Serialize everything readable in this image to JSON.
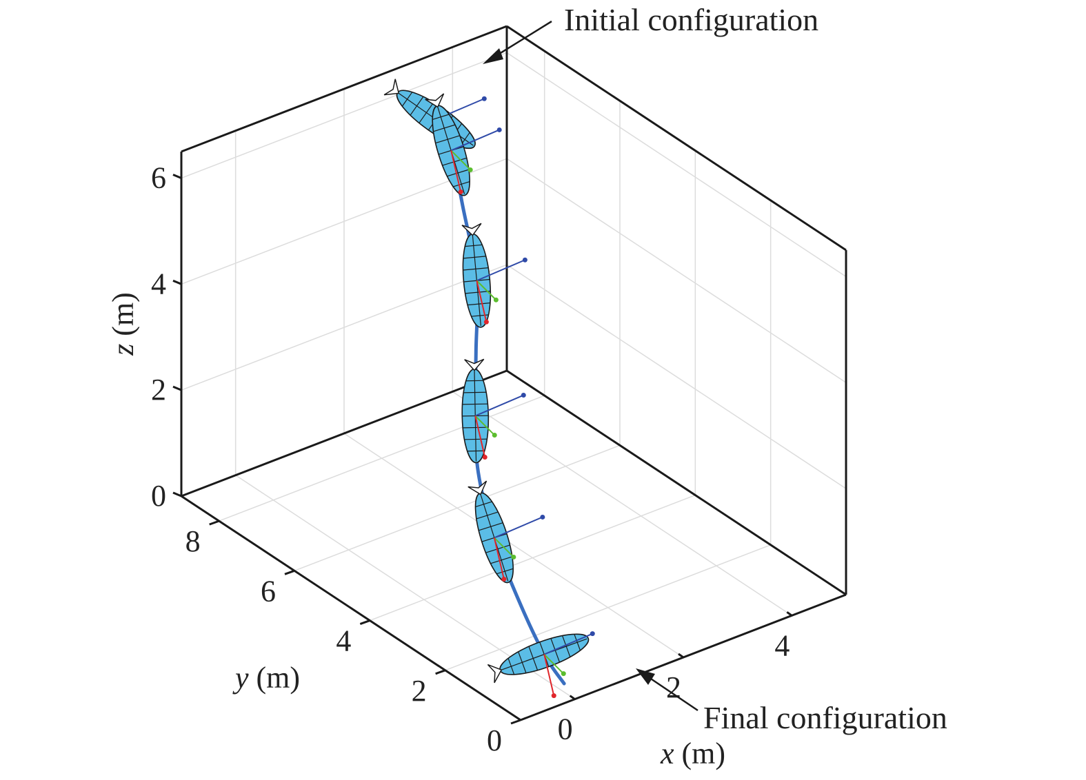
{
  "chart_data": {
    "type": "line",
    "projection": "3d",
    "xlabel": {
      "var": "x",
      "unit": " (m)"
    },
    "ylabel": {
      "var": "y",
      "unit": " (m)"
    },
    "zlabel": {
      "var": "z",
      "unit": " (m)"
    },
    "xlim": [
      -1,
      5
    ],
    "ylim": [
      0,
      9
    ],
    "zlim": [
      0,
      6.5
    ],
    "xticks": [
      0,
      2,
      4
    ],
    "yticks": [
      0,
      2,
      4,
      6,
      8
    ],
    "zticks": [
      0,
      2,
      4,
      6
    ],
    "grid": true,
    "trajectory_color": "#3a6fc0",
    "body_color": "#5bbde6",
    "axis_colors": {
      "x": "#e0262b",
      "y": "#5cbd2f",
      "z": "#2f4aa8"
    },
    "annotations": {
      "start": "Initial configuration",
      "end": "Final configuration"
    },
    "series": [
      {
        "x": [
          3.0,
          3.0,
          2.8,
          2.5,
          2.0,
          1.5,
          1.0,
          0.6,
          0.35,
          0.2,
          0.15
        ],
        "y": [
          8.0,
          7.6,
          7.0,
          6.2,
          5.5,
          4.8,
          4.0,
          3.0,
          2.0,
          1.1,
          0.5
        ],
        "z": [
          6.0,
          5.6,
          4.9,
          4.0,
          3.2,
          2.5,
          2.0,
          1.4,
          0.8,
          0.25,
          0.0
        ]
      }
    ],
    "configurations": [
      {
        "x": 3.0,
        "y": 8.0,
        "z": 6.0
      },
      {
        "x": 3.0,
        "y": 7.6,
        "z": 5.6
      },
      {
        "x": 2.5,
        "y": 6.2,
        "z": 4.0
      },
      {
        "x": 1.5,
        "y": 4.8,
        "z": 2.5
      },
      {
        "x": 0.6,
        "y": 3.0,
        "z": 1.4
      },
      {
        "x": 0.2,
        "y": 1.1,
        "z": 0.25
      }
    ]
  }
}
